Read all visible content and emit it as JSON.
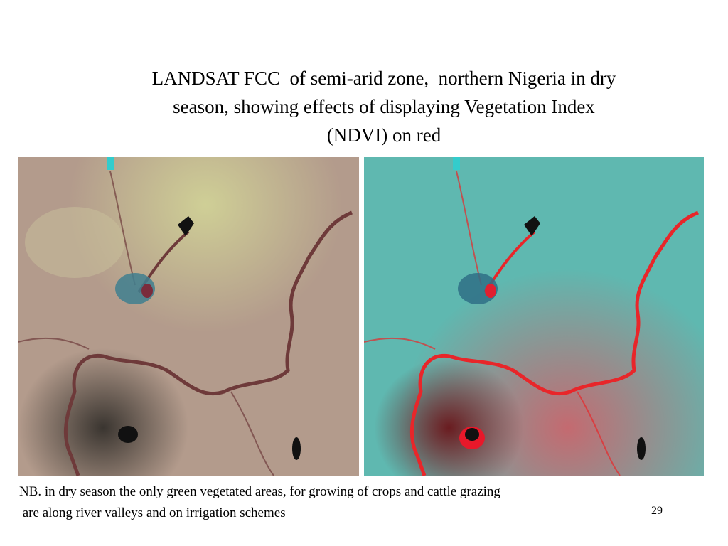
{
  "slide": {
    "title": [
      "LANDSAT FCC  of semi-arid zone,  northern Nigeria in dry",
      "season, showing effects of displaying Vegetation Index",
      "(NDVI) on red"
    ],
    "note": [
      "NB. in dry season the only green vegetated areas, for growing of crops and cattle grazing",
      " are along river valleys and on irrigation schemes"
    ],
    "page_number": "29"
  }
}
